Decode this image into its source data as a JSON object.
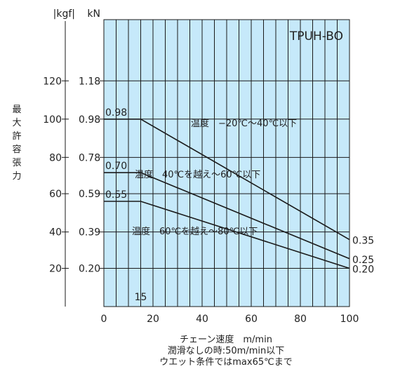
{
  "chart_data": {
    "type": "line",
    "title": "TPUH-BO",
    "unit_left": "|kgf|",
    "unit_right": "kN",
    "ylabel": "最大許容張力",
    "xlabel": "チェーン速度　m/min",
    "note_lines": [
      "潤滑なしの時:50m/min以下",
      "ウエット条件ではmax65℃まで"
    ],
    "xlim": [
      0,
      100
    ],
    "ylim": [
      0,
      1.5
    ],
    "x_ticks": [
      0,
      20,
      40,
      60,
      80,
      100
    ],
    "x_extra_label": {
      "x": 15,
      "label": "15"
    },
    "y_ticks": [
      {
        "kgf": "120",
        "kn": "1.18",
        "value": 1.18
      },
      {
        "kgf": "100",
        "kn": "0.98",
        "value": 0.98
      },
      {
        "kgf": "80",
        "kn": "0.78",
        "value": 0.78
      },
      {
        "kgf": "60",
        "kn": "0.59",
        "value": 0.59
      },
      {
        "kgf": "40",
        "kn": "0.39",
        "value": 0.39
      },
      {
        "kgf": "20",
        "kn": "0.20",
        "value": 0.2
      }
    ],
    "series": [
      {
        "name": "温度　−20℃〜40℃以下",
        "start_label": "0.98",
        "end_label": "0.35",
        "points": [
          [
            0,
            0.98
          ],
          [
            15,
            0.98
          ],
          [
            100,
            0.35
          ]
        ]
      },
      {
        "name": "温度　40℃を越え〜60℃以下",
        "start_label": "0.70",
        "end_label": "0.25",
        "points": [
          [
            0,
            0.7
          ],
          [
            15,
            0.7
          ],
          [
            100,
            0.25
          ]
        ]
      },
      {
        "name": "温度　60℃を越え〜80℃以下",
        "start_label": "0.55",
        "end_label": "0.20",
        "points": [
          [
            0,
            0.55
          ],
          [
            15,
            0.55
          ],
          [
            100,
            0.2
          ]
        ]
      }
    ],
    "colors": {
      "plot_bg": "#c6e9fa",
      "grid": "#1a1a1a",
      "line": "#1a1a1a"
    }
  }
}
